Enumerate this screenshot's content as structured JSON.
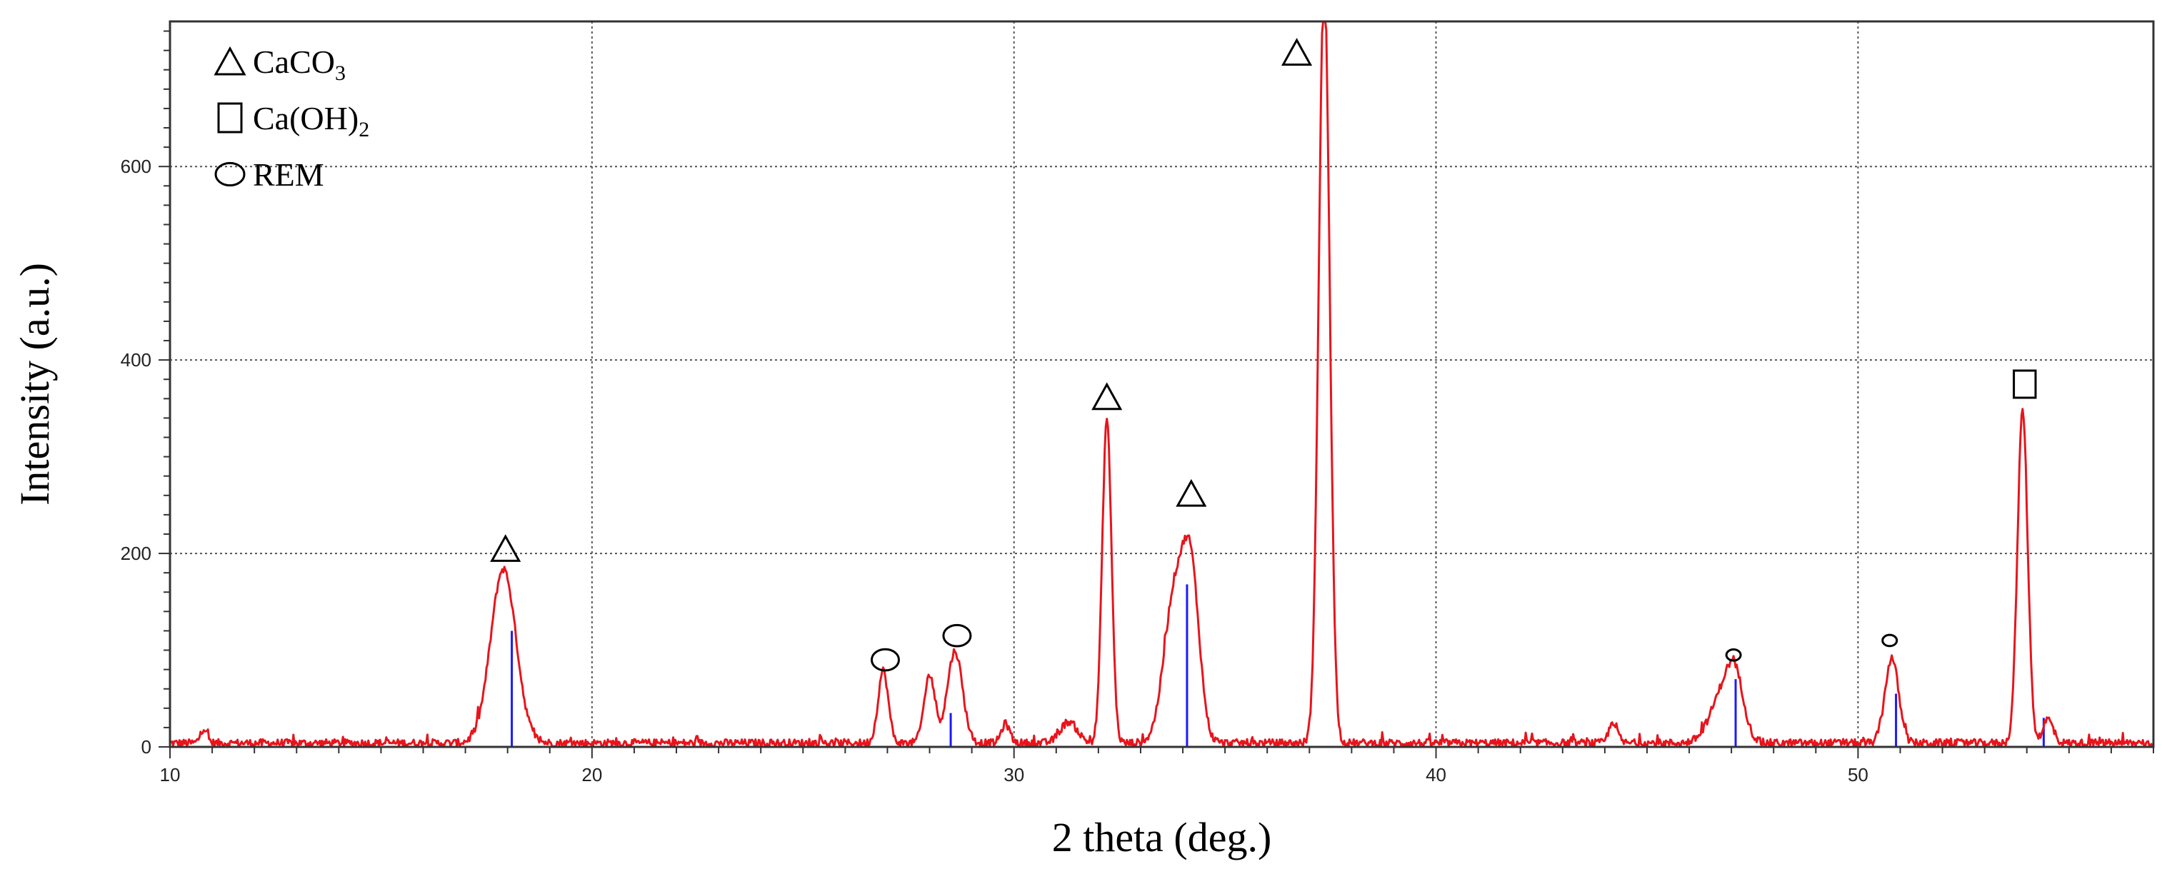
{
  "chart_data": {
    "type": "line",
    "title": "",
    "xlabel": "2 theta (deg.)",
    "ylabel": "Intensity (a.u.)",
    "xlim": [
      10,
      57
    ],
    "ylim": [
      0,
      750
    ],
    "x_ticks": [
      10,
      20,
      30,
      40,
      50
    ],
    "y_ticks": [
      0,
      200,
      400,
      600
    ],
    "grid": true,
    "legend_position": "top-left",
    "legend": [
      {
        "symbol": "triangle",
        "label": "CaCO",
        "subscript": "3"
      },
      {
        "symbol": "square",
        "label": "Ca(OH)",
        "subscript": "2"
      },
      {
        "symbol": "circle",
        "label": "REM",
        "subscript": ""
      }
    ],
    "series": [
      {
        "color": "#e8141c",
        "peaks": [
          {
            "x": 10.8,
            "y": 15,
            "w": 0.08
          },
          {
            "x": 17.9,
            "y": 180,
            "w": 0.3
          },
          {
            "x": 26.9,
            "y": 75,
            "w": 0.12
          },
          {
            "x": 28.0,
            "y": 70,
            "w": 0.13
          },
          {
            "x": 28.6,
            "y": 95,
            "w": 0.18
          },
          {
            "x": 29.8,
            "y": 20,
            "w": 0.1
          },
          {
            "x": 31.3,
            "y": 22,
            "w": 0.2
          },
          {
            "x": 32.2,
            "y": 335,
            "w": 0.11
          },
          {
            "x": 33.8,
            "y": 150,
            "w": 0.25
          },
          {
            "x": 34.2,
            "y": 160,
            "w": 0.2
          },
          {
            "x": 37.35,
            "y": 790,
            "w": 0.13
          },
          {
            "x": 44.2,
            "y": 22,
            "w": 0.1
          },
          {
            "x": 46.8,
            "y": 50,
            "w": 0.3
          },
          {
            "x": 47.1,
            "y": 50,
            "w": 0.2
          },
          {
            "x": 50.8,
            "y": 88,
            "w": 0.16
          },
          {
            "x": 53.9,
            "y": 345,
            "w": 0.12
          },
          {
            "x": 54.5,
            "y": 25,
            "w": 0.12
          }
        ],
        "noise_amplitude": 8
      }
    ],
    "reference_lines": {
      "color": "#1a1aff",
      "lines": [
        {
          "x": 18.1,
          "y": 120
        },
        {
          "x": 28.5,
          "y": 35
        },
        {
          "x": 34.1,
          "y": 168
        },
        {
          "x": 47.1,
          "y": 70
        },
        {
          "x": 50.9,
          "y": 55
        },
        {
          "x": 54.4,
          "y": 30
        }
      ]
    },
    "peak_markers": [
      {
        "x": 17.95,
        "y": 205,
        "symbol": "triangle",
        "size": "medium"
      },
      {
        "x": 26.95,
        "y": 90,
        "symbol": "circle",
        "size": "medium"
      },
      {
        "x": 28.65,
        "y": 115,
        "symbol": "circle",
        "size": "medium"
      },
      {
        "x": 32.2,
        "y": 362,
        "symbol": "triangle",
        "size": "medium"
      },
      {
        "x": 34.2,
        "y": 262,
        "symbol": "triangle",
        "size": "medium"
      },
      {
        "x": 36.7,
        "y": 718,
        "symbol": "triangle",
        "size": "medium"
      },
      {
        "x": 47.05,
        "y": 95,
        "symbol": "circle",
        "size": "small"
      },
      {
        "x": 50.75,
        "y": 110,
        "symbol": "circle",
        "size": "small"
      },
      {
        "x": 53.95,
        "y": 375,
        "symbol": "square",
        "size": "medium"
      }
    ]
  }
}
